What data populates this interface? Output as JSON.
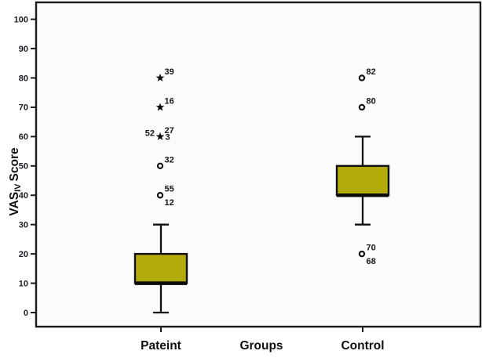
{
  "figure": {
    "background": "#ffffff",
    "plot_background": "#fbfbfb",
    "frame_color": "#1a1a1a",
    "text_color": "#1d1d24"
  },
  "chart_data": {
    "type": "boxplot",
    "title": "",
    "xlabel": "Groups",
    "ylabel": {
      "main": "VAS",
      "sub": "IV",
      "rest": "Score"
    },
    "categories": [
      "Pateint",
      "Control"
    ],
    "ylim": [
      0,
      100
    ],
    "yticks": [
      0,
      10,
      20,
      30,
      40,
      50,
      60,
      70,
      80,
      90,
      100
    ],
    "grid": false,
    "legend": false,
    "box_fill": "#b3aa0b",
    "box_stroke": "#101010",
    "series": [
      {
        "name": "Pateint",
        "whisker_low": 0,
        "q1": 10,
        "median": 10,
        "q3": 20,
        "whisker_high": 30,
        "outliers": [
          {
            "value": 80,
            "marker": "star",
            "labels": [
              {
                "text": "39",
                "pos": "top-right"
              }
            ]
          },
          {
            "value": 70,
            "marker": "star",
            "labels": [
              {
                "text": "16",
                "pos": "top-right"
              }
            ]
          },
          {
            "value": 60,
            "marker": "star",
            "labels": [
              {
                "text": "52",
                "pos": "left"
              },
              {
                "text": "27",
                "pos": "top-right"
              },
              {
                "text": "3",
                "pos": "right"
              }
            ]
          },
          {
            "value": 50,
            "marker": "circle",
            "labels": [
              {
                "text": "32",
                "pos": "top-right"
              }
            ]
          },
          {
            "value": 40,
            "marker": "circle",
            "labels": [
              {
                "text": "55",
                "pos": "top-right"
              },
              {
                "text": "12",
                "pos": "bottom-right"
              }
            ]
          }
        ]
      },
      {
        "name": "Control",
        "whisker_low": 30,
        "q1": 40,
        "median": 40,
        "q3": 50,
        "whisker_high": 60,
        "outliers": [
          {
            "value": 80,
            "marker": "circle",
            "labels": [
              {
                "text": "82",
                "pos": "top-right"
              }
            ]
          },
          {
            "value": 70,
            "marker": "circle",
            "labels": [
              {
                "text": "80",
                "pos": "top-right"
              }
            ]
          },
          {
            "value": 20,
            "marker": "circle",
            "labels": [
              {
                "text": "70",
                "pos": "top-right"
              },
              {
                "text": "68",
                "pos": "bottom-right"
              }
            ]
          }
        ]
      }
    ]
  }
}
